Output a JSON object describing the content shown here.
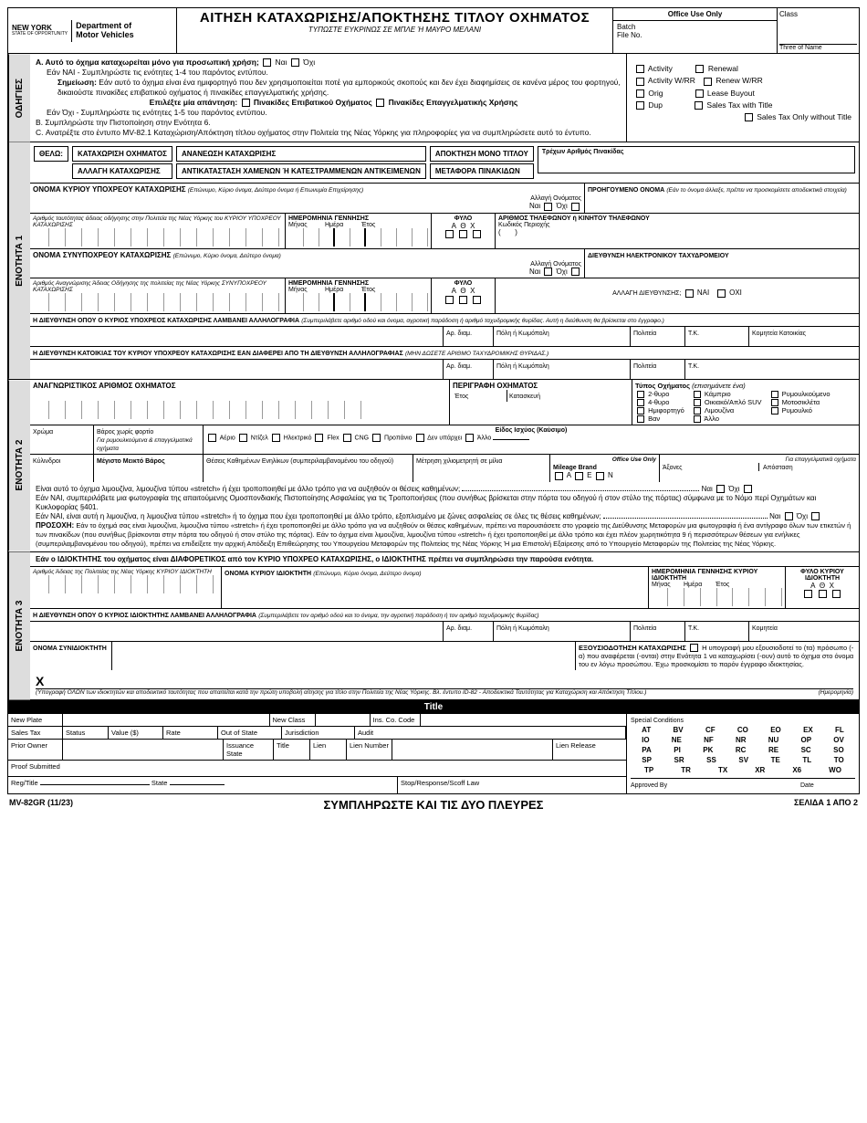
{
  "header": {
    "state": "NEW YORK",
    "state_sub": "STATE OF OPPORTUNITY",
    "dept1": "Department of",
    "dept2": "Motor Vehicles",
    "title": "ΑΙΤΗΣΗ ΚΑΤΑΧΩΡΙΣΗΣ/ΑΠΟΚΤΗΣΗΣ ΤΙΤΛΟΥ ΟΧΗΜΑΤΟΣ",
    "subtitle": "ΤΥΠΩΣΤΕ ΕΥΚΡΙΝΩΣ ΣΕ ΜΠΛΕ Ή ΜΑΥΡΟ ΜΕΛΑΝΙ",
    "office_use": "Office Use Only",
    "batch": "Batch",
    "fileno": "File No.",
    "class": "Class",
    "three": "Three of Name"
  },
  "odigies": {
    "tab": "ΟΔΗΓΙΕΣ",
    "a": "Α. Αυτό το όχημα καταχωρείται μόνο για προσωπική χρήση;",
    "yes": "Ναι",
    "no": "Όχι",
    "nai_line": "Εάν ΝΑΙ - Συμπληρώστε τις ενότητες 1-4 του παρόντος εντύπου.",
    "note_lbl": "Σημείωση:",
    "note": "Εάν αυτό το όχημα είναι ένα ημιφορτηγό που δεν χρησιμοποιείται ποτέ για εμπορικούς σκοπούς και δεν έχει διαφημίσεις σε κανένα μέρος του φορτηγού, δικαιούστε πινακίδες επιβατικού οχήματος ή πινακίδες επαγγελματικής χρήσης.",
    "select": "Επιλέξτε μία απάντηση:",
    "passenger": "Πινακίδες Επιβατικού Οχήματος",
    "commercial": "Πινακίδες Επαγγελματικής Χρήσης",
    "oxi_line": "Εάν Όχι - Συμπληρώστε τις ενότητες 1-5 του παρόντος εντύπου.",
    "b": "Β. Συμπληρώστε την Πιστοποίηση στην Ενότητα 6.",
    "c": "C. Ανατρέξτε στο έντυπο MV-82.1 Καταχώριση/Απόκτηση τίτλου οχήματος στην Πολιτεία της Νέας Υόρκης για πληροφορίες για να συμπληρώσετε αυτό το έντυπο.",
    "r_activity": "Activity",
    "r_renewal": "Renewal",
    "r_activity_wrr": "Activity W/RR",
    "r_renew_wrr": "Renew W/RR",
    "r_orig": "Orig",
    "r_lease": "Lease Buyout",
    "r_dup": "Dup",
    "r_stax": "Sales Tax with Title",
    "r_stax_only": "Sales Tax Only without Title"
  },
  "thelo": {
    "label": "ΘΕΛΩ:",
    "reg": "ΚΑΤΑΧΩΡΙΣΗ ΟΧΗΜΑΤΟΣ",
    "change": "ΑΛΛΑΓΗ ΚΑΤΑΧΩΡΙΣΗΣ",
    "renew": "ΑΝΑΝΕΩΣΗ ΚΑΤΑΧΩΡΙΣΗΣ",
    "replace": "ΑΝΤΙΚΑΤΑΣΤΑΣΗ ΧΑΜΕΝΩΝ Ή ΚΑΤΕΣΤΡΑΜΜΕΝΩΝ ΑΝΤΙΚΕΙΜΕΝΩΝ",
    "title_only": "ΑΠΟΚΤΗΣΗ ΜΟΝΟ ΤΙΤΛΟΥ",
    "transfer": "ΜΕΤΑΦΟΡΑ ΠΙΝΑΚΙΔΩΝ",
    "current_plate": "Τρέχων Αριθμός Πινακίδας"
  },
  "s1": {
    "tab": "ΕΝΟΤΗΤΑ 1",
    "reg_name": "ΟΝΟΜΑ ΚΥΡΙΟΥ ΥΠΟΧΡΕΟΥ ΚΑΤΑΧΩΡΙΣΗΣ",
    "reg_name_note": "(Επώνυμο, Κύριο όνομα, Δεύτερο όνομα ή Επωνυμία Επιχείρησης)",
    "prev_name": "ΠΡΟΗΓΟΥΜΕΝΟ ΟΝΟΜΑ",
    "prev_name_note": "(Εάν το όνομα άλλαξε, πρέπει να προσκομίσετε αποδεικτικά στοιχεία)",
    "name_change": "Αλλαγή Ονόματος",
    "id_note": "Αριθμός ταυτότητας άδειας οδήγησης στην Πολιτεία της Νέας Υόρκης του ΚΥΡΙΟΥ ΥΠΟΧΡΕΟΥ ΚΑΤΑΧΩΡΙΣΗΣ",
    "dob": "ΗΜΕΡΟΜΗΝΙΑ ΓΕΝΝΗΣΗΣ",
    "month": "Μήνας",
    "day": "Ημέρα",
    "year": "Έτος",
    "sex": "ΦΥΛΟ",
    "a": "A",
    "th": "Θ",
    "x": "X",
    "phone": "ΑΡΙΘΜΟΣ ΤΗΛΕΦΩΝΟΥ ή ΚΙΝΗΤΟΥ ΤΗΛΕΦΩΝΟΥ",
    "area": "Κωδικός Περιοχής",
    "co_name": "ΟΝΟΜΑ ΣΥΝΥΠΟΧΡΕΟΥ ΚΑΤΑΧΩΡΙΣΗΣ",
    "co_name_note": "(Επώνυμο, Κύριο όνομα, Δεύτερο όνομα)",
    "email": "ΔΙΕΥΘΥΝΣΗ ΗΛΕΚΤΡΟΝΙΚΟΥ ΤΑΧΥΔΡΟΜΕΙΟΥ",
    "co_id_note": "Αριθμός Αναγνώρισης Άδειας Οδήγησης της πολιτείας της Νέας Υόρκης ΣΥΝΥΠΟΧΡΕΟΥ ΚΑΤΑΧΩΡΙΣΗΣ",
    "addr_change": "ΑΛΛΑΓΗ ΔΙΕΥΘΥΝΣΗΣ;",
    "nai": "ΝΑΙ",
    "oxi": "ΟΧΙ",
    "mail_addr": "Η ΔΙΕΥΘΥΝΣΗ ΟΠΟΥ Ο ΚΥΡΙΟΣ ΥΠΟΧΡΕΟΣ ΚΑΤΑΧΩΡΙΣΗΣ ΛΑΜΒΑΝΕΙ ΑΛΛΗΛΟΓΡΑΦΙΑ",
    "mail_note": "(Συμπεριλάβετε αριθμό οδού και όνομα, αγροτική παράδοση ή αριθμό ταχυδρομικής θυρίδας. Αυτή η διεύθυνση θα βρίσκεται στο έγγραφο.)",
    "apt": "Αρ. διαμ.",
    "city": "Πόλη ή Κωμόπολη",
    "state": "Πολιτεία",
    "zip": "Τ.Κ.",
    "county": "Κομητεία Κατοικίας",
    "res_addr": "Η ΔΙΕΥΘΥΝΣΗ ΚΑΤΟΙΚΙΑΣ ΤΟΥ ΚΥΡΙΟΥ ΥΠΟΧΡΕΟΥ ΚΑΤΑΧΩΡΙΣΗΣ ΕΑΝ ΔΙΑΦΕΡΕΙ ΑΠΟ ΤΗ ΔΙΕΥΘΥΝΣΗ ΑΛΛΗΛΟΓΡΑΦΙΑΣ",
    "res_note": "(ΜΗΝ ΔΩΣΕΤΕ ΑΡΙΘΜΟ ΤΑΧΥΔΡΟΜΙΚΗΣ ΘΥΡΙΔΑΣ.)"
  },
  "s2": {
    "tab": "ΕΝΟΤΗΤΑ 2",
    "vin": "ΑΝΑΓΝΩΡΙΣΤΙΚΟΣ ΑΡΙΘΜΟΣ ΟΧΗΜΑΤΟΣ",
    "desc": "ΠΕΡΙΓΡΑΦΗ ΟΧΗΜΑΤΟΣ",
    "year": "Έτος",
    "make": "Κατασκευή",
    "vtype": "Τύπος Οχήματος",
    "vtype_note": "(επισημάνετε ένα)",
    "v2d": "2-θυρο",
    "vconv": "Κάμπριο",
    "vtow": "Ρυμουλκούμενο",
    "v4d": "4-θυρο",
    "vsuv": "Οικιακό/Απλό SUV",
    "vmoto": "Μοτοσικλέτα",
    "vtruck": "Ημιφορτηγό",
    "vlimo": "Λιμουζίνα",
    "vtrailer": "Ρυμουλκό",
    "vvan": "Βαν",
    "vother": "Άλλο",
    "color": "Χρώμα",
    "weight": "Βάρος χωρίς φορτίο",
    "fuel": "Είδος Ισχύος (Καύσιμο)",
    "fuel_note": "Για ρυμουλκούμενα & επαγγελματικά οχήματα",
    "gas": "Αέριο",
    "diesel": "Ντίζελ",
    "elec": "Ηλεκτρικό",
    "flex": "Flex",
    "cng": "CNG",
    "prop": "Προπάνιο",
    "none": "Δεν υπάρχει",
    "other": "Άλλο",
    "cyl": "Κύλινδροι",
    "mgw": "Μέγιστο Μεικτό Βάρος",
    "seats": "Θέσεις Καθημένων Ενηλίκων (συμπεριλαμβανομένου του οδηγού)",
    "odo": "Μέτρηση χιλιομετρητή σε μίλια",
    "ou": "Office Use Only",
    "mileage": "Mileage Brand",
    "comm_note": "Για επαγγελματικά οχήματα",
    "axles": "Άξονες",
    "dist": "Απόσταση",
    "ma": "A",
    "me": "E",
    "mn": "N",
    "limo_q1": "Είναι αυτό το όχημα λιμουζίνα, λιμουζίνα τύπου «stretch» ή έχει τροποποιηθεί με άλλο τρόπο για να αυξηθούν οι θέσεις καθημένων;",
    "limo_t1": "Εάν ΝΑΙ, συμπεριλάβετε μια φωτογραφία της απαιτούμενης Ομοσπονδιακής Πιστοποίησης Ασφαλείας για τις Τροποποιήσεις (που συνήθως βρίσκεται στην πόρτα του οδηγού ή στον στύλο της πόρτας) σύμφωνα με το Νόμο περί Οχημάτων και Κυκλοφορίας §401.",
    "limo_q2": "Εάν ΝΑΙ, είναι αυτή η λιμουζίνα, η λιμουζίνα τύπου «stretch» ή το όχημα που έχει τροποποιηθεί με άλλο τρόπο, εξοπλισμένο με ζώνες ασφαλείας σε όλες τις θέσεις καθημένων;",
    "warn_lbl": "ΠΡΟΣΟΧΗ:",
    "warn": "Εάν το όχημά σας είναι λιμουζίνα, λιμουζίνα τύπου «stretch» ή έχει τροποποιηθεί με άλλο τρόπο για να αυξηθούν οι θέσεις καθημένων, πρέπει να παρουσιάσετε στο γραφείο της Διεύθυνσης Μεταφορών μια φωτογραφία ή ένα αντίγραφο όλων των ετικετών ή των πινακίδων (που συνήθως βρίσκονται στην πόρτα του οδηγού ή στον στύλο της πόρτας). Εάν το όχημα είναι λιμουζίνα, λιμουζίνα τύπου «stretch» ή έχει τροποποιηθεί με άλλο τρόπο και έχει πλέον χωρητικότητα 9 ή περισσότερων θέσεων για ενήλικες (συμπεριλαμβανομένου του οδηγού), πρέπει να επιδείξετε την αρχική Απόδειξη Επιθεώρησης του Υπουργείου Μεταφορών της Πολιτείας της Νέας Υόρκης Ή μια Επιστολή Εξαίρεσης από το Υπουργείο Μεταφορών της Πολιτείας της Νέας Υόρκης."
  },
  "s3": {
    "tab": "ΕΝΟΤΗΤΑ 3",
    "intro": "Εάν ο ΙΔΙΟΚΤΗΤΗΣ του οχήματος είναι ΔΙΑΦΟΡΕΤΙΚΟΣ από τον ΚΥΡΙΟ ΥΠΟΧΡΕΟ ΚΑΤΑΧΩΡΙΣΗΣ, ο ΙΔΙΟΚΤΗΤΗΣ πρέπει να συμπληρώσει την παρούσα ενότητα.",
    "owner_id": "Αριθμός Άδειας της Πολιτείας της Νέας Υόρκης ΚΥΡΙΟΥ ΙΔΙΟΚΤΗΤΗ",
    "owner_name": "ΟΝΟΜΑ ΚΥΡΙΟΥ ΙΔΙΟΚΤΗΤΗ",
    "owner_name_note": "(Επώνυμο, Κύριο όνομα, Δεύτερο όνομα)",
    "owner_dob": "ΗΜΕΡΟΜΗΝΙΑ ΓΕΝΝΗΣΗΣ ΚΥΡΙΟΥ ΙΔΙΟΚΤΗΤΗ",
    "owner_sex": "ΦΥΛΟ ΚΥΡΙΟΥ ΙΔΙΟΚΤΗΤΗ",
    "owner_addr": "Η ΔΙΕΥΘΥΝΣΗ ΟΠΟΥ Ο ΚΥΡΙΟΣ ΙΔΙΟΚΤΗΤΗΣ ΛΑΜΒΑΝΕΙ ΑΛΛΗΛΟΓΡΑΦΙΑ",
    "owner_addr_note": "(Συμπεριλάβετε τον αριθμό οδού και το όνομα, την αγροτική παράδοση ή τον αριθμό ταχυδρομικής θυρίδας)",
    "county": "Κομητεία",
    "co_owner": "ΟΝΟΜΑ ΣΥΝΙΔΙΟΚΤΗΤΗ",
    "auth": "ΕΞΟΥΣΙΟΔΟΤΗΣΗ ΚΑΤΑΧΩΡΙΣΗΣ",
    "auth_text": "Η υπογραφή μου εξουσιοδοτεί το (τα) πρόσωπο (-α) που αναφέρεται (-ονται) στην Ενότητα 1 να καταχωρίσει (-ουν) αυτό το όχημα στο όνομα του εν λόγω προσώπου. Έχω προσκομίσει το παρόν έγγραφο ιδιοκτησίας.",
    "sig_x": "X",
    "sig_note": "(Υπογραφή ΟΛΩΝ των ιδιοκτητών και αποδεικτικό ταυτότητας που απαιτείται κατά την πρώτη υποβολή αίτησης για τίτλο στην Πολιτεία της Νέας Υόρκης. Βλ. έντυπο ID-82 - Αποδεικτικά Ταυτότητας για Καταχώριση και Απόκτηση Τίτλου.)",
    "date": "(Ημερομηνία)"
  },
  "ou": {
    "title": "Title",
    "new_plate": "New Plate",
    "new_class": "New Class",
    "ins_co": "Ins. Co. Code",
    "sales_tax": "Sales Tax",
    "status": "Status",
    "value": "Value ($)",
    "rate": "Rate",
    "oos": "Out of State",
    "jur": "Jurisdiction",
    "audit": "Audit",
    "prior": "Prior Owner",
    "iss_state": "Issuance State",
    "lien": "Lien",
    "lien_no": "Lien Number",
    "lien_rel": "Lien Release",
    "proof": "Proof Submitted",
    "reg": "Reg/Title",
    "state": "State",
    "stop": "Stop/Response/Scoff Law",
    "spec": "Special Conditions",
    "approved": "Approved By",
    "date": "Date",
    "codes": [
      "AT",
      "BV",
      "CF",
      "CO",
      "EO",
      "EX",
      "FL",
      "IO",
      "NE",
      "NF",
      "NR",
      "NU",
      "OP",
      "OV",
      "PA",
      "PI",
      "PK",
      "RC",
      "RE",
      "SC",
      "SO",
      "SP",
      "SR",
      "SS",
      "SV",
      "TE",
      "TL",
      "TO",
      "TP",
      "TR",
      "TX",
      "XR",
      "X6",
      "WO"
    ]
  },
  "footer": {
    "form_no": "MV-82GR (11/23)",
    "both_sides": "ΣΥΜΠΛΗΡΩΣΤΕ ΚΑΙ ΤΙΣ ΔΥΟ ΠΛΕΥΡΕΣ",
    "page": "ΣΕΛΙΔΑ 1 Α된 2"
  },
  "footer_page": "ΣΕΛΙΔΑ 1 ΑΠΟ 2"
}
